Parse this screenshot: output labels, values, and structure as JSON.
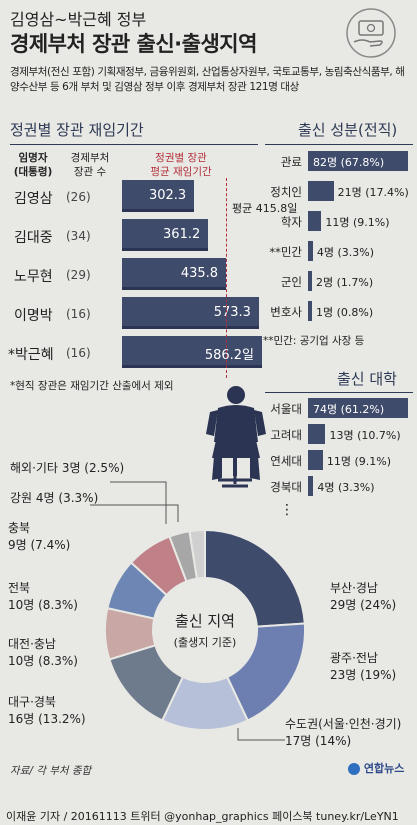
{
  "header": {
    "subtitle": "김영삼~박근혜 정부",
    "title": "경제부처 장관 출신·출생지역",
    "description": "경제부처(전신 포함) 기획재정부, 금융위원회, 산업통상자원부, 국토교통부, 농림축산식품부, 해양수산부 등 6개 부처 및 김영삼 정부 이후 경제부처 장관 121명 대상"
  },
  "tenure": {
    "section_title": "정권별 장관 재임기간",
    "col1": [
      "임명자",
      "(대통령)"
    ],
    "col2": [
      "경제부처",
      "장관 수"
    ],
    "col3": [
      "정권별 장관",
      "평균 재임기간"
    ],
    "avg_label": "평균 415.8일",
    "footnote": "*현직 장관은 재임기간 산출에서 제외",
    "rows": [
      {
        "name": "김영삼",
        "count": "(26)",
        "value_label": "302.3"
      },
      {
        "name": "김대중",
        "count": "(34)",
        "value_label": "361.2"
      },
      {
        "name": "노무현",
        "count": "(29)",
        "value_label": "435.8"
      },
      {
        "name": "이명박",
        "count": "(16)",
        "value_label": "573.3"
      },
      {
        "name": "*박근혜",
        "count": "(16)",
        "value_label": "586.2일"
      }
    ]
  },
  "origin": {
    "section_title": "출신 성분(전직)",
    "note": "**민간: 공기업 사장 등",
    "rows": [
      {
        "label": "관료",
        "value_label": "82명 (67.8%)"
      },
      {
        "label": "정치인",
        "value_label": "21명 (17.4%)"
      },
      {
        "label": "학자",
        "value_label": "11명 (9.1%)"
      },
      {
        "label": "**민간",
        "value_label": "4명 (3.3%)"
      },
      {
        "label": "군인",
        "value_label": "2명 (1.7%)"
      },
      {
        "label": "변호사",
        "value_label": "1명 (0.8%)"
      }
    ]
  },
  "university": {
    "section_title": "출신 대학",
    "ellipsis": "⋮",
    "rows": [
      {
        "label": "서울대",
        "value_label": "74명 (61.2%)"
      },
      {
        "label": "고려대",
        "value_label": "13명 (10.7%)"
      },
      {
        "label": "연세대",
        "value_label": "11명 (9.1%)"
      },
      {
        "label": "경북대",
        "value_label": "4명 (3.3%)"
      }
    ]
  },
  "region": {
    "center_title": "출신 지역",
    "center_sub": "(출생지 기준)",
    "labels": [
      {
        "name": "부산·경남",
        "value": "29명 (24%)"
      },
      {
        "name": "광주·전남",
        "value": "23명 (19%)"
      },
      {
        "name": "수도권(서울·인천·경기)",
        "value": "17명 (14%)"
      },
      {
        "name": "대구·경북",
        "value": "16명 (13.2%)"
      },
      {
        "name": "대전·충남",
        "value": "10명 (8.3%)"
      },
      {
        "name": "전북",
        "value": "10명 (8.3%)"
      },
      {
        "name": "충북",
        "value": "9명 (7.4%)"
      },
      {
        "name": "강원",
        "value": "4명 (3.3%)"
      },
      {
        "name": "해외·기타",
        "value": "3명 (2.5%)"
      }
    ]
  },
  "source": "자료/ 각 부처 종합",
  "logo": "연합뉴스",
  "footer": "이재윤 기자 / 20161113  트위터 @yonhap_graphics  페이스북 tuney.kr/LeYN1",
  "colors": {
    "navy": "#3f4b6b",
    "accent_red": "#b3303a",
    "background": "#e8e8e4"
  },
  "chart_data": [
    {
      "type": "bar",
      "title": "정권별 장관 재임기간",
      "categories": [
        "김영삼",
        "김대중",
        "노무현",
        "이명박",
        "박근혜"
      ],
      "values": [
        302.3,
        361.2,
        435.8,
        573.3,
        586.2
      ],
      "ministers": [
        26,
        34,
        29,
        16,
        16
      ],
      "average": 415.8,
      "unit": "일"
    },
    {
      "type": "bar",
      "title": "출신 성분(전직)",
      "categories": [
        "관료",
        "정치인",
        "학자",
        "민간",
        "군인",
        "변호사"
      ],
      "values": [
        82,
        21,
        11,
        4,
        2,
        1
      ],
      "percent": [
        67.8,
        17.4,
        9.1,
        3.3,
        1.7,
        0.8
      ],
      "unit": "명"
    },
    {
      "type": "bar",
      "title": "출신 대학",
      "categories": [
        "서울대",
        "고려대",
        "연세대",
        "경북대"
      ],
      "values": [
        74,
        13,
        11,
        4
      ],
      "percent": [
        61.2,
        10.7,
        9.1,
        3.3
      ],
      "unit": "명"
    },
    {
      "type": "pie",
      "title": "출신 지역",
      "categories": [
        "부산·경남",
        "광주·전남",
        "수도권(서울·인천·경기)",
        "대구·경북",
        "대전·충남",
        "전북",
        "충북",
        "강원",
        "해외·기타"
      ],
      "values": [
        29,
        23,
        17,
        16,
        10,
        10,
        9,
        4,
        3
      ],
      "percent": [
        24,
        19,
        14,
        13.2,
        8.3,
        8.3,
        7.4,
        3.3,
        2.5
      ],
      "colors": [
        "#3f4b6b",
        "#6d7fb1",
        "#b7c0d9",
        "#6e7b8c",
        "#c8a7a5",
        "#6e86b4",
        "#c08088",
        "#a7a7a7",
        "#d0d0d0"
      ],
      "unit": "명"
    }
  ]
}
